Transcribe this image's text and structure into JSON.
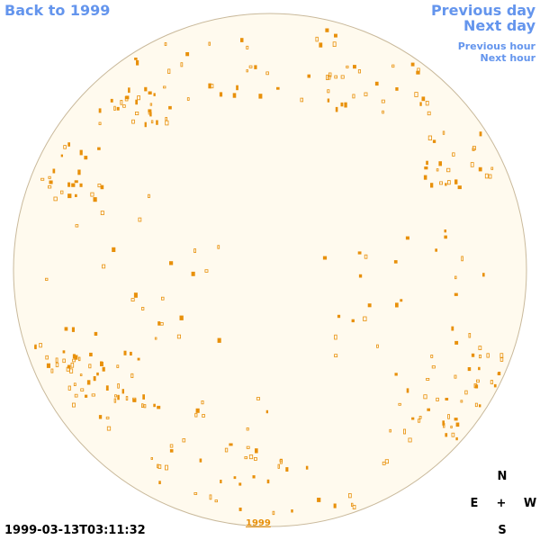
{
  "nav": {
    "back": "Back to 1999",
    "previous_day": "Previous day",
    "next_day": "Next day",
    "previous_hour": "Previous hour",
    "next_hour": "Next hour"
  },
  "timestamp": "1999-03-13T03:11:32",
  "year_link": "1999",
  "compass": {
    "north": "N",
    "east": "E",
    "center": "+",
    "west": "W",
    "south": "S"
  }
}
